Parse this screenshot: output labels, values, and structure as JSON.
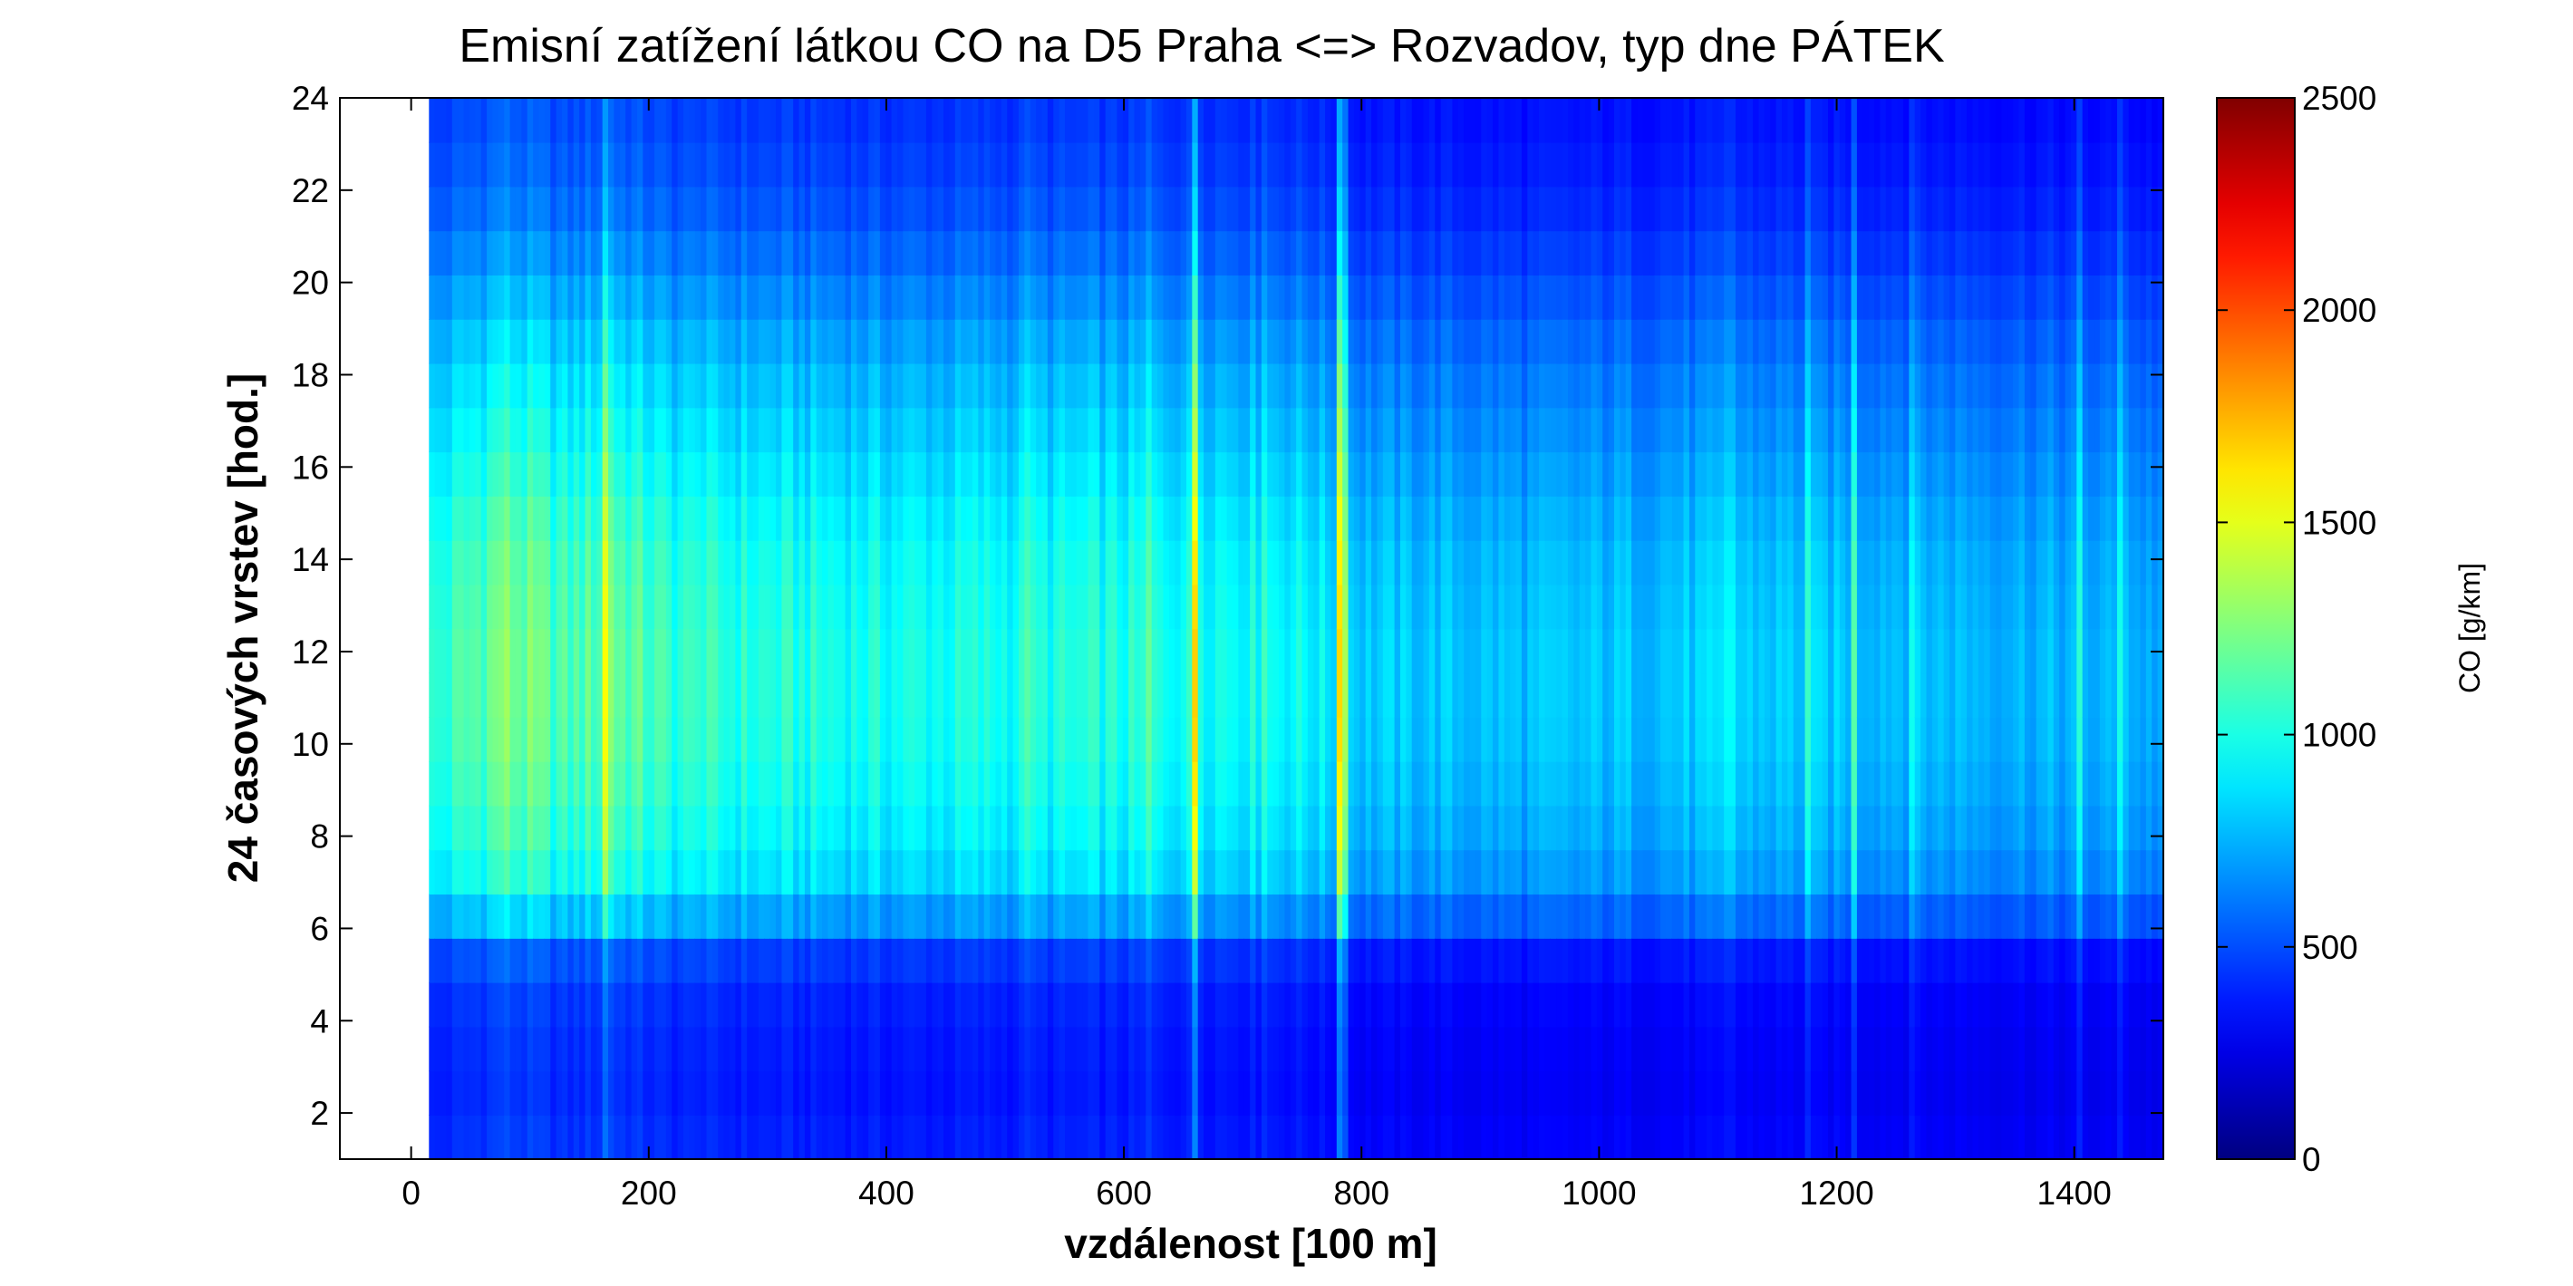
{
  "chart_data": {
    "type": "heatmap",
    "title": "Emisní zatížení látkou CO na D5 Praha <=> Rozvadov, typ dne PÁTEK",
    "xlabel": "vzdálenost [100 m]",
    "ylabel": "24 časových vrstev [hod.]",
    "xlim": [
      -60,
      1475
    ],
    "ylim": [
      1,
      24
    ],
    "x_ticks": [
      0,
      200,
      400,
      600,
      800,
      1000,
      1200,
      1400
    ],
    "y_ticks": [
      2,
      4,
      6,
      8,
      10,
      12,
      14,
      16,
      18,
      20,
      22,
      24
    ],
    "data_x_range": [
      15,
      1475
    ],
    "data_y_range": [
      1,
      24
    ],
    "colormap": "jet",
    "colorbar": {
      "label": "CO [g/km]",
      "range": [
        0,
        2500
      ],
      "ticks": [
        0,
        500,
        1000,
        1500,
        2000,
        2500
      ]
    },
    "hourly_profile": [
      0.38,
      0.36,
      0.37,
      0.39,
      0.45,
      0.7,
      0.86,
      0.92,
      0.96,
      0.99,
      1.0,
      1.0,
      0.98,
      0.96,
      0.92,
      0.87,
      0.82,
      0.77,
      0.71,
      0.64,
      0.57,
      0.51,
      0.47,
      0.44
    ],
    "segment_base": [
      {
        "x": 15,
        "value": 1000
      },
      {
        "x": 80,
        "value": 1250
      },
      {
        "x": 130,
        "value": 1100
      },
      {
        "x": 170,
        "value": 1200
      },
      {
        "x": 220,
        "value": 1050
      },
      {
        "x": 400,
        "value": 980
      },
      {
        "x": 600,
        "value": 1000
      },
      {
        "x": 680,
        "value": 1000
      },
      {
        "x": 750,
        "value": 950
      },
      {
        "x": 800,
        "value": 820
      },
      {
        "x": 950,
        "value": 780
      },
      {
        "x": 1100,
        "value": 820
      },
      {
        "x": 1250,
        "value": 800
      },
      {
        "x": 1475,
        "value": 730
      }
    ],
    "hotspots": [
      {
        "x": 78,
        "peak": 1550
      },
      {
        "x": 165,
        "peak": 1800
      },
      {
        "x": 243,
        "peak": 1250
      },
      {
        "x": 520,
        "peak": 1300
      },
      {
        "x": 560,
        "peak": 1250
      },
      {
        "x": 620,
        "peak": 1300
      },
      {
        "x": 660,
        "peak": 1700
      },
      {
        "x": 720,
        "peak": 1300
      },
      {
        "x": 783,
        "peak": 1900
      },
      {
        "x": 1110,
        "peak": 1200
      },
      {
        "x": 1175,
        "peak": 1150
      },
      {
        "x": 1215,
        "peak": 1200
      },
      {
        "x": 1265,
        "peak": 1150
      },
      {
        "x": 1405,
        "peak": 1100
      },
      {
        "x": 1440,
        "peak": 1150
      }
    ]
  }
}
